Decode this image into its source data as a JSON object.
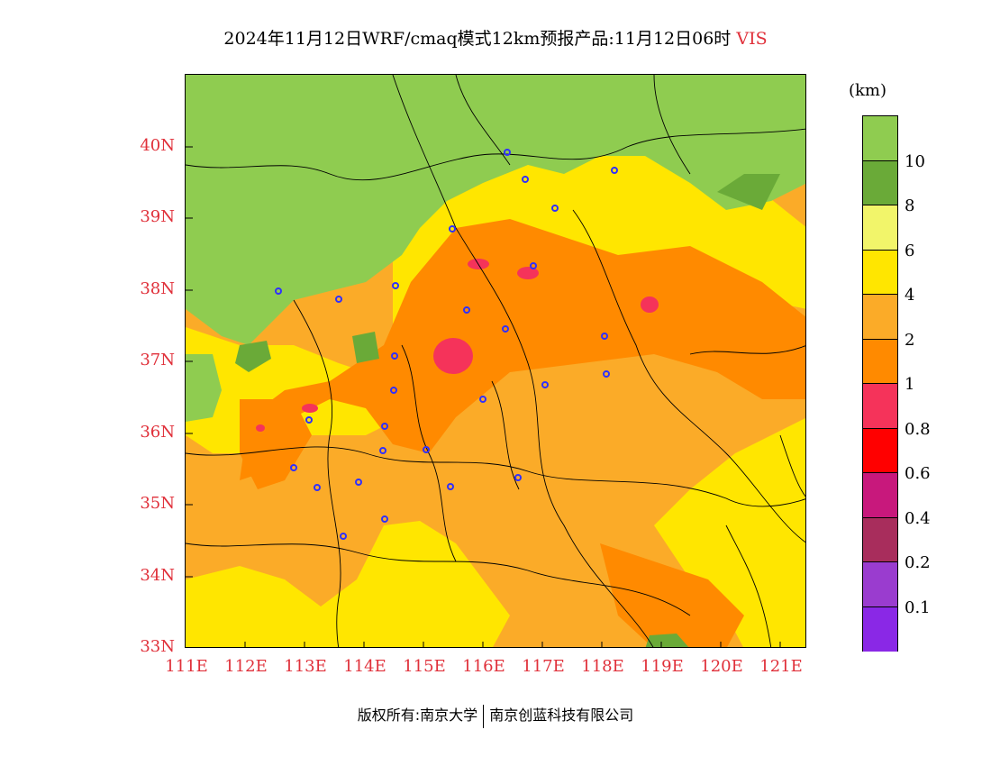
{
  "title": {
    "main": "2024年11月12日WRF/cmaq模式12km预报产品:11月12日06时",
    "variable": "VIS"
  },
  "map": {
    "lat_labels": [
      "40N",
      "39N",
      "38N",
      "37N",
      "36N",
      "35N",
      "34N",
      "33N"
    ],
    "lon_labels": [
      "111E",
      "112E",
      "113E",
      "114E",
      "115E",
      "116E",
      "117E",
      "118E",
      "119E",
      "120E",
      "121E"
    ],
    "lat_range": [
      33,
      41
    ],
    "lon_range": [
      111,
      121.4
    ]
  },
  "colorbar": {
    "unit": "(km)",
    "levels": [
      "10",
      "8",
      "6",
      "4",
      "2",
      "1",
      "0.8",
      "0.6",
      "0.4",
      "0.2",
      "0.1"
    ],
    "colors": [
      "#8fcc50",
      "#6aaa38",
      "#f2f56a",
      "#ffe600",
      "#fbab28",
      "#ff8a00",
      "#f5335a",
      "#ff0000",
      "#c8187c",
      "#a82d5c",
      "#9a3ccf",
      "#8a28e6"
    ]
  },
  "footer": {
    "left": "版权所有:南京大学",
    "right": "南京创蓝科技有限公司"
  }
}
